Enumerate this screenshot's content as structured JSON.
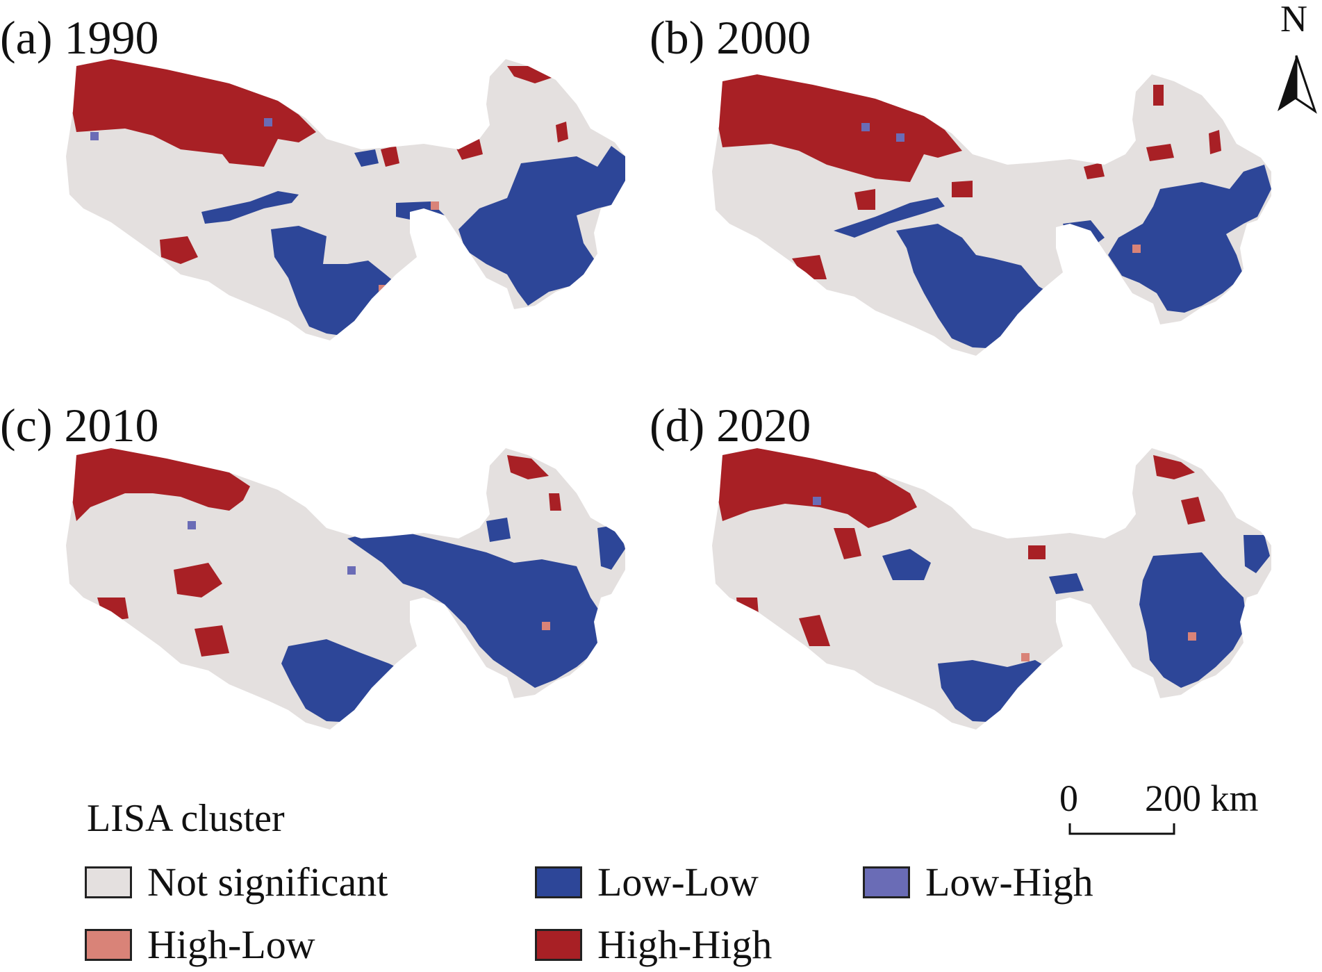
{
  "panels": [
    {
      "id": "a",
      "label": "(a) 1990"
    },
    {
      "id": "b",
      "label": "(b) 2000"
    },
    {
      "id": "c",
      "label": "(c) 2010"
    },
    {
      "id": "d",
      "label": "(d) 2020"
    }
  ],
  "legend": {
    "title": "LISA cluster",
    "items": [
      {
        "key": "not_significant",
        "label": "Not significant",
        "color": "#e4e0df"
      },
      {
        "key": "low_low",
        "label": "Low-Low",
        "color": "#2d4698"
      },
      {
        "key": "low_high",
        "label": "Low-High",
        "color": "#6a6cb6"
      },
      {
        "key": "high_low",
        "label": "High-Low",
        "color": "#d98378"
      },
      {
        "key": "high_high",
        "label": "High-High",
        "color": "#a82025"
      }
    ]
  },
  "scale_bar": {
    "start": "0",
    "end": "200 km"
  },
  "north_arrow": {
    "letter": "N"
  }
}
